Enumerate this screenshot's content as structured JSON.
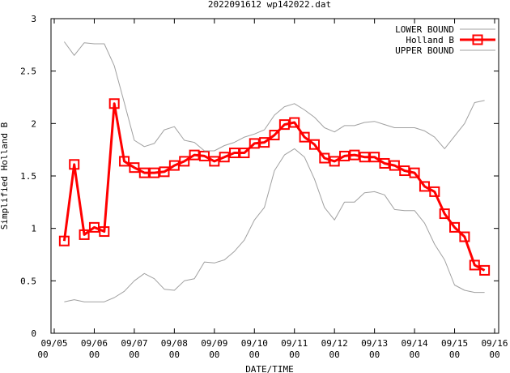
{
  "chart_data": {
    "type": "line",
    "title": "2022091612 wp142022.dat",
    "xlabel": "DATE/TIME",
    "ylabel": "Simplified Holland B",
    "ylim": [
      0,
      3
    ],
    "yticks": [
      "0",
      "0.5",
      "1",
      "1.5",
      "2",
      "2.5",
      "3"
    ],
    "xlim": [
      0,
      11
    ],
    "xticks": [
      {
        "date": "09/05",
        "hour": "00"
      },
      {
        "date": "09/06",
        "hour": "00"
      },
      {
        "date": "09/07",
        "hour": "00"
      },
      {
        "date": "09/08",
        "hour": "00"
      },
      {
        "date": "09/09",
        "hour": "00"
      },
      {
        "date": "09/10",
        "hour": "00"
      },
      {
        "date": "09/11",
        "hour": "00"
      },
      {
        "date": "09/12",
        "hour": "00"
      },
      {
        "date": "09/13",
        "hour": "00"
      },
      {
        "date": "09/14",
        "hour": "00"
      },
      {
        "date": "09/15",
        "hour": "00"
      },
      {
        "date": "09/16",
        "hour": "00"
      }
    ],
    "legend_position": "top-right",
    "grid": false,
    "series": [
      {
        "name": "LOWER BOUND",
        "color": "#a0a0a0",
        "points": [
          [
            0.25,
            0.3
          ],
          [
            0.5,
            0.32
          ],
          [
            0.75,
            0.3
          ],
          [
            1.25,
            0.3
          ],
          [
            1.5,
            0.34
          ],
          [
            1.75,
            0.4
          ],
          [
            2.0,
            0.5
          ],
          [
            2.25,
            0.57
          ],
          [
            2.5,
            0.52
          ],
          [
            2.75,
            0.42
          ],
          [
            3.0,
            0.41
          ],
          [
            3.25,
            0.5
          ],
          [
            3.5,
            0.52
          ],
          [
            3.75,
            0.68
          ],
          [
            4.0,
            0.67
          ],
          [
            4.25,
            0.7
          ],
          [
            4.5,
            0.78
          ],
          [
            4.75,
            0.89
          ],
          [
            5.0,
            1.08
          ],
          [
            5.25,
            1.2
          ],
          [
            5.5,
            1.55
          ],
          [
            5.75,
            1.7
          ],
          [
            6.0,
            1.76
          ],
          [
            6.25,
            1.68
          ],
          [
            6.5,
            1.47
          ],
          [
            6.75,
            1.2
          ],
          [
            7.0,
            1.08
          ],
          [
            7.25,
            1.25
          ],
          [
            7.5,
            1.25
          ],
          [
            7.75,
            1.34
          ],
          [
            8.0,
            1.35
          ],
          [
            8.25,
            1.32
          ],
          [
            8.5,
            1.18
          ],
          [
            8.75,
            1.17
          ],
          [
            9.0,
            1.17
          ],
          [
            9.25,
            1.05
          ],
          [
            9.5,
            0.85
          ],
          [
            9.75,
            0.7
          ],
          [
            10.0,
            0.46
          ],
          [
            10.25,
            0.41
          ],
          [
            10.5,
            0.39
          ],
          [
            10.75,
            0.39
          ]
        ]
      },
      {
        "name": "Holland B",
        "color": "#ff0000",
        "points": [
          [
            0.25,
            0.88
          ],
          [
            0.5,
            1.61
          ],
          [
            0.75,
            0.94
          ],
          [
            1.0,
            1.01
          ],
          [
            1.25,
            0.97
          ],
          [
            1.5,
            2.19
          ],
          [
            1.75,
            1.64
          ],
          [
            2.0,
            1.58
          ],
          [
            2.25,
            1.53
          ],
          [
            2.5,
            1.53
          ],
          [
            2.75,
            1.54
          ],
          [
            3.0,
            1.6
          ],
          [
            3.25,
            1.64
          ],
          [
            3.5,
            1.7
          ],
          [
            3.75,
            1.69
          ],
          [
            4.0,
            1.64
          ],
          [
            4.25,
            1.68
          ],
          [
            4.5,
            1.72
          ],
          [
            4.75,
            1.72
          ],
          [
            5.0,
            1.81
          ],
          [
            5.25,
            1.82
          ],
          [
            5.5,
            1.89
          ],
          [
            5.75,
            1.99
          ],
          [
            6.0,
            2.01
          ],
          [
            6.25,
            1.87
          ],
          [
            6.5,
            1.8
          ],
          [
            6.75,
            1.67
          ],
          [
            7.0,
            1.64
          ],
          [
            7.25,
            1.69
          ],
          [
            7.5,
            1.7
          ],
          [
            7.75,
            1.68
          ],
          [
            8.0,
            1.68
          ],
          [
            8.25,
            1.62
          ],
          [
            8.5,
            1.6
          ],
          [
            8.75,
            1.55
          ],
          [
            9.0,
            1.53
          ],
          [
            9.25,
            1.4
          ],
          [
            9.5,
            1.35
          ],
          [
            9.75,
            1.14
          ],
          [
            10.0,
            1.01
          ],
          [
            10.25,
            0.92
          ],
          [
            10.5,
            0.65
          ],
          [
            10.75,
            0.6
          ]
        ]
      },
      {
        "name": "UPPER BOUND",
        "color": "#a0a0a0",
        "points": [
          [
            0.25,
            2.78
          ],
          [
            0.5,
            2.65
          ],
          [
            0.75,
            2.77
          ],
          [
            1.0,
            2.76
          ],
          [
            1.25,
            2.76
          ],
          [
            1.5,
            2.55
          ],
          [
            1.75,
            2.2
          ],
          [
            2.0,
            1.84
          ],
          [
            2.25,
            1.78
          ],
          [
            2.5,
            1.81
          ],
          [
            2.75,
            1.94
          ],
          [
            3.0,
            1.97
          ],
          [
            3.25,
            1.84
          ],
          [
            3.5,
            1.82
          ],
          [
            3.75,
            1.74
          ],
          [
            4.0,
            1.74
          ],
          [
            4.25,
            1.79
          ],
          [
            4.5,
            1.82
          ],
          [
            4.75,
            1.87
          ],
          [
            5.0,
            1.9
          ],
          [
            5.25,
            1.94
          ],
          [
            5.5,
            2.08
          ],
          [
            5.75,
            2.16
          ],
          [
            6.0,
            2.19
          ],
          [
            6.25,
            2.13
          ],
          [
            6.5,
            2.06
          ],
          [
            6.75,
            1.96
          ],
          [
            7.0,
            1.92
          ],
          [
            7.25,
            1.98
          ],
          [
            7.5,
            1.98
          ],
          [
            7.75,
            2.01
          ],
          [
            8.0,
            2.02
          ],
          [
            8.25,
            1.99
          ],
          [
            8.5,
            1.96
          ],
          [
            8.75,
            1.96
          ],
          [
            9.0,
            1.96
          ],
          [
            9.25,
            1.93
          ],
          [
            9.5,
            1.87
          ],
          [
            9.75,
            1.76
          ],
          [
            10.0,
            1.88
          ],
          [
            10.25,
            2.0
          ],
          [
            10.5,
            2.2
          ],
          [
            10.75,
            2.22
          ]
        ]
      }
    ]
  }
}
